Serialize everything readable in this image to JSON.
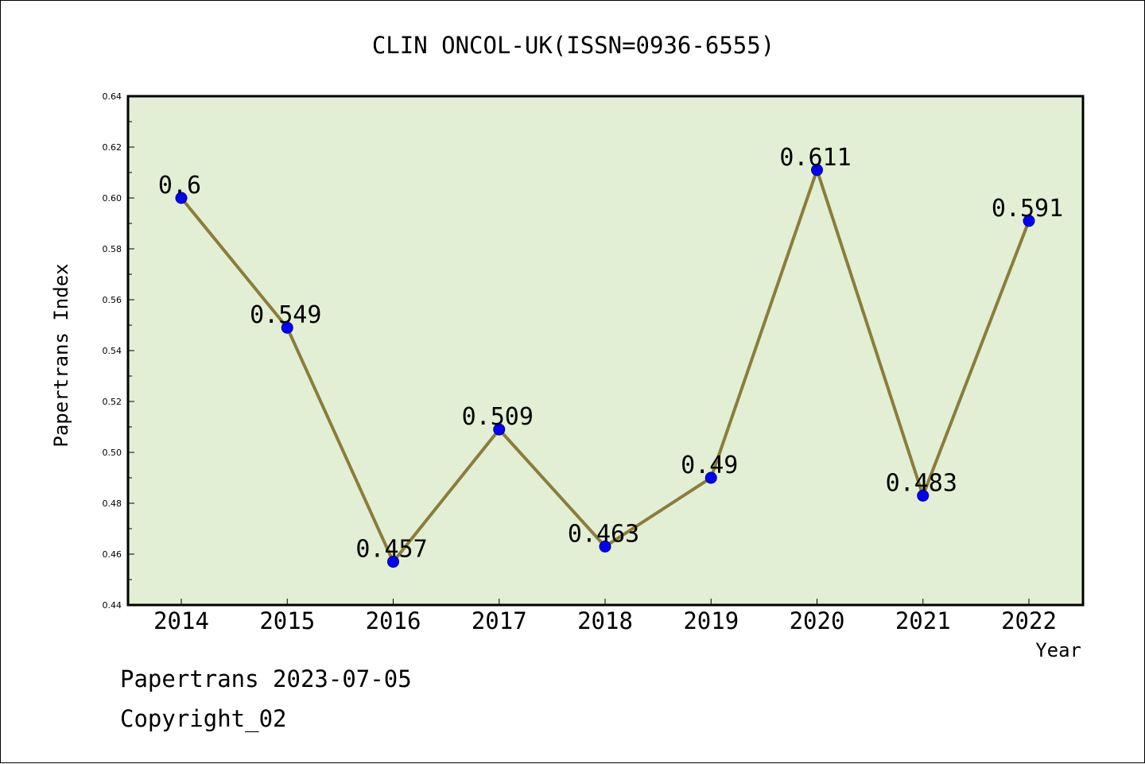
{
  "chart_data": {
    "type": "line",
    "title": "CLIN ONCOL-UK(ISSN=0936-6555)",
    "xlabel": "Year",
    "ylabel": "Papertrans Index",
    "x": [
      "2014",
      "2015",
      "2016",
      "2017",
      "2018",
      "2019",
      "2020",
      "2021",
      "2022"
    ],
    "series": [
      {
        "values": [
          0.6,
          0.549,
          0.457,
          0.509,
          0.463,
          0.49,
          0.611,
          0.483,
          0.591
        ],
        "data_labels": [
          "0.6",
          "0.549",
          "0.457",
          "0.509",
          "0.463",
          "0.49",
          "0.611",
          "0.483",
          "0.591"
        ],
        "line_color": "#8B7D3A",
        "marker_color": "#0000FF"
      }
    ],
    "ylim": [
      0.44,
      0.64
    ],
    "yticks": [
      "0.44",
      "0.46",
      "0.48",
      "0.50",
      "0.52",
      "0.54",
      "0.56",
      "0.58",
      "0.60",
      "0.62",
      "0.64"
    ],
    "grid": false,
    "plot_background": "#E2EFD5"
  },
  "footer": {
    "line1": "Papertrans 2023-07-05",
    "line2": "Copyright_02"
  }
}
